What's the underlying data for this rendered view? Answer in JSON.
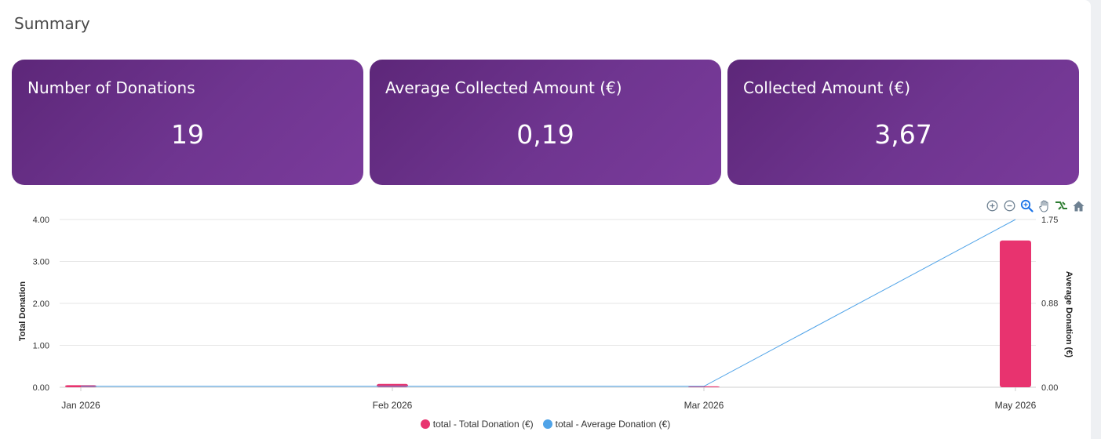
{
  "section": {
    "title": "Summary"
  },
  "cards": [
    {
      "title": "Number of Donations",
      "value": "19"
    },
    {
      "title": "Average Collected Amount (€)",
      "value": "0,19"
    },
    {
      "title": "Collected Amount (€)",
      "value": "3,67"
    }
  ],
  "toolbar": {
    "icons": [
      "zoom-in-icon",
      "zoom-out-icon",
      "selection-zoom-icon",
      "pan-hand-icon",
      "reset-zoom-icon",
      "home-icon"
    ]
  },
  "colors": {
    "card_gradient_start": "#5d2779",
    "card_gradient_end": "#7a3b9b",
    "bar_color": "#e8336f",
    "line_color": "#4fa3e8",
    "toolbar_active": "#1a73e8"
  },
  "chart_data": {
    "type": "bar",
    "categories": [
      "Jan 2026",
      "Feb 2026",
      "Mar 2026",
      "May 2026"
    ],
    "series": [
      {
        "name": "total - Total Donation (€)",
        "type": "bar",
        "axis": "left",
        "values": [
          0.05,
          0.08,
          0.02,
          3.5
        ]
      },
      {
        "name": "total - Average Donation (€)",
        "type": "line",
        "axis": "right",
        "values": [
          0.01,
          0.01,
          0.01,
          1.75
        ]
      }
    ],
    "ylabel": "Total Donation",
    "y2label": "Average Donation (€)",
    "ylim": [
      0,
      4
    ],
    "y2lim": [
      0,
      1.75
    ],
    "yticks": [
      "0.00",
      "1.00",
      "2.00",
      "3.00",
      "4.00"
    ],
    "y2ticks": [
      "0.00",
      "0.88",
      "1.75"
    ],
    "grid": true,
    "legend_position": "bottom"
  }
}
